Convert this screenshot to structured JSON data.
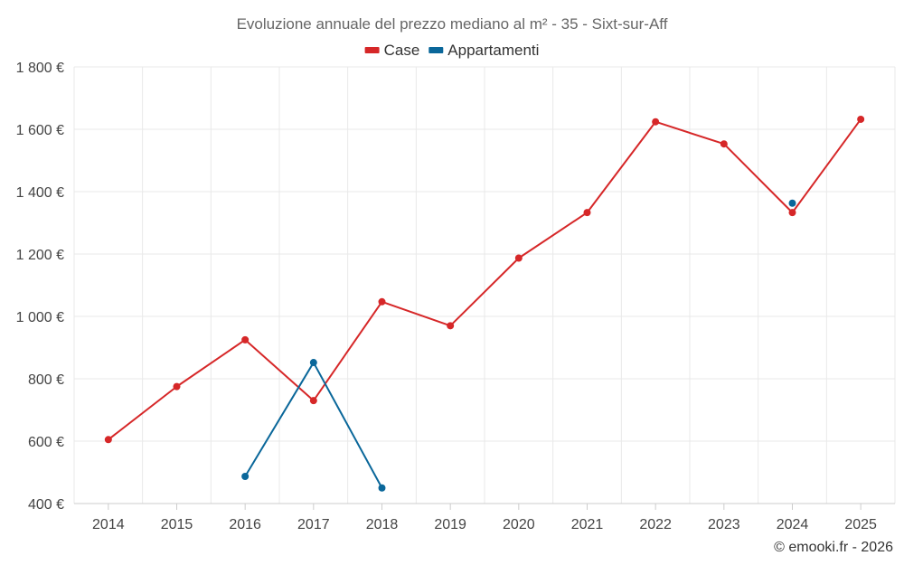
{
  "chart_data": {
    "type": "line",
    "title": "Evoluzione annuale del prezzo mediano al m² - 35 - Sixt-sur-Aff",
    "categories": [
      "2014",
      "2015",
      "2016",
      "2017",
      "2018",
      "2019",
      "2020",
      "2021",
      "2022",
      "2023",
      "2024",
      "2025"
    ],
    "y_ticks": [
      {
        "value": 400,
        "label": "400 €"
      },
      {
        "value": 600,
        "label": "600 €"
      },
      {
        "value": 800,
        "label": "800 €"
      },
      {
        "value": 1000,
        "label": "1 000 €"
      },
      {
        "value": 1200,
        "label": "1 200 €"
      },
      {
        "value": 1400,
        "label": "1 400 €"
      },
      {
        "value": 1600,
        "label": "1 600 €"
      },
      {
        "value": 1800,
        "label": "1 800 €"
      }
    ],
    "ylim": [
      400,
      1800
    ],
    "series": [
      {
        "name": "Case",
        "color": "#d62728",
        "values": [
          605,
          775,
          925,
          730,
          1047,
          970,
          1187,
          1333,
          1624,
          1553,
          1333,
          1632
        ]
      },
      {
        "name": "Appartamenti",
        "color": "#0a679a",
        "values": [
          null,
          null,
          487,
          852,
          450,
          null,
          null,
          null,
          null,
          null,
          1363,
          null
        ]
      }
    ],
    "legend": "top-center",
    "grid": true
  },
  "credit": "© emooki.fr - 2026"
}
